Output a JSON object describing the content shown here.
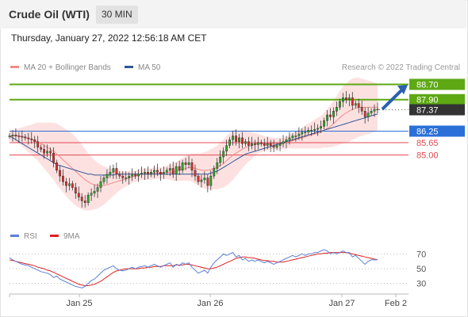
{
  "header": {
    "title": "Crude Oil (WTI)",
    "interval": "30 MIN"
  },
  "datetime": "Thursday, January 27, 2022 12:56:18 AM CET",
  "legend_main": [
    {
      "label": "MA 20 + Bollinger Bands",
      "color": "#f28b8b"
    },
    {
      "label": "MA 50",
      "color": "#2e5597"
    }
  ],
  "legend_rsi": [
    {
      "label": "RSI",
      "color": "#5a7fd6"
    },
    {
      "label": "9MA",
      "color": "#e02020"
    }
  ],
  "copyright": "Research © 2022 Trading Central",
  "chart_data": [
    {
      "type": "candlestick",
      "x_tick_labels": [
        "Jan 25",
        "Jan 26",
        "Jan 27",
        "Feb 2"
      ],
      "levels": [
        {
          "value": 88.7,
          "label": "88.70",
          "kind": "resistance",
          "color": "#5ea814"
        },
        {
          "value": 87.9,
          "label": "87.90",
          "kind": "resistance",
          "color": "#5ea814"
        },
        {
          "value": 87.37,
          "label": "87.37",
          "kind": "last-price",
          "color": "#333333"
        },
        {
          "value": 86.25,
          "label": "86.25",
          "kind": "pivot",
          "color": "#2b6fd8"
        },
        {
          "value": 85.65,
          "label": "85.65",
          "kind": "support",
          "color": "#e3484d"
        },
        {
          "value": 85.0,
          "label": "85.00",
          "kind": "support",
          "color": "#e3484d"
        }
      ],
      "ylim": [
        81.0,
        89.3
      ],
      "series": [
        {
          "name": "MA 20 + Bollinger Bands"
        },
        {
          "name": "MA 50"
        }
      ],
      "close": [
        86.0,
        86.05,
        86.0,
        85.98,
        85.95,
        85.9,
        85.85,
        85.8,
        85.7,
        85.4,
        85.3,
        85.1,
        85.2,
        85.1,
        84.6,
        84.2,
        83.9,
        83.6,
        83.4,
        83.5,
        83.3,
        83.0,
        82.8,
        82.6,
        82.5,
        82.9,
        83.0,
        83.1,
        83.3,
        83.6,
        83.8,
        84.0,
        84.1,
        84.3,
        84.0,
        83.9,
        83.8,
        83.8,
        83.9,
        84.0,
        83.9,
        84.0,
        84.05,
        84.1,
        84.0,
        84.1,
        84.2,
        84.1,
        84.0,
        84.1,
        84.2,
        84.3,
        84.0,
        84.4,
        84.2,
        84.6,
        84.5,
        84.6,
        84.2,
        83.9,
        83.6,
        83.7,
        83.8,
        83.4,
        83.9,
        84.3,
        84.6,
        84.9,
        85.2,
        85.5,
        85.8,
        86.0,
        85.7,
        85.9,
        85.6,
        85.7,
        85.5,
        85.6,
        85.55,
        85.65,
        85.6,
        85.5,
        85.6,
        85.5,
        85.4,
        85.5,
        85.6,
        85.7,
        85.8,
        85.9,
        86.0,
        86.0,
        86.1,
        86.2,
        86.2,
        86.3,
        86.3,
        86.35,
        86.4,
        86.5,
        86.8,
        87.1,
        87.0,
        87.3,
        87.5,
        87.8,
        88.0,
        87.9,
        88.0,
        87.6,
        87.7,
        87.5,
        87.3,
        87.0,
        87.2,
        87.3,
        87.4,
        87.37
      ],
      "ma20": [
        86.0,
        86.0,
        86.0,
        86.0,
        85.95,
        85.9,
        85.85,
        85.8,
        85.75,
        85.7,
        85.6,
        85.5,
        85.4,
        85.3,
        85.2,
        85.05,
        84.9,
        84.75,
        84.6,
        84.45,
        84.3,
        84.15,
        84.0,
        83.85,
        83.7,
        83.6,
        83.5,
        83.45,
        83.4,
        83.4,
        83.4,
        83.45,
        83.5,
        83.55,
        83.6,
        83.65,
        83.7,
        83.75,
        83.8,
        83.85,
        83.9,
        83.95,
        84.0,
        84.0,
        84.0,
        84.0,
        84.05,
        84.05,
        84.05,
        84.05,
        84.1,
        84.1,
        84.1,
        84.15,
        84.2,
        84.25,
        84.3,
        84.35,
        84.35,
        84.3,
        84.25,
        84.2,
        84.2,
        84.2,
        84.25,
        84.3,
        84.35,
        84.45,
        84.55,
        84.7,
        84.85,
        85.0,
        85.1,
        85.2,
        85.3,
        85.4,
        85.45,
        85.5,
        85.55,
        85.6,
        85.6,
        85.6,
        85.6,
        85.6,
        85.6,
        85.6,
        85.6,
        85.6,
        85.65,
        85.7,
        85.75,
        85.8,
        85.85,
        85.9,
        85.95,
        86.0,
        86.05,
        86.1,
        86.15,
        86.2,
        86.3,
        86.4,
        86.5,
        86.65,
        86.8,
        86.95,
        87.1,
        87.2,
        87.3,
        87.4,
        87.45,
        87.5,
        87.5,
        87.5,
        87.5,
        87.5,
        87.5,
        87.5
      ],
      "ma50": [
        86.0,
        85.9,
        85.8,
        85.7,
        85.6,
        85.5,
        85.4,
        85.3,
        85.2,
        85.1,
        85.0,
        84.9,
        84.8,
        84.7,
        84.6,
        84.5,
        84.45,
        84.4,
        84.35,
        84.3,
        84.25,
        84.2,
        84.15,
        84.1,
        84.05,
        84.0,
        84.0,
        83.95,
        83.95,
        83.95,
        83.95,
        83.95,
        83.95,
        83.95,
        84.0,
        84.0,
        84.0,
        84.0,
        84.0,
        84.0,
        84.0,
        84.0,
        84.0,
        84.0,
        84.0,
        84.0,
        84.0,
        84.0,
        84.0,
        84.0,
        84.0,
        84.0,
        84.0,
        84.0,
        84.0,
        84.0,
        84.0,
        84.0,
        84.0,
        84.0,
        84.0,
        84.0,
        84.0,
        84.0,
        84.05,
        84.1,
        84.15,
        84.25,
        84.35,
        84.45,
        84.55,
        84.65,
        84.75,
        84.85,
        84.95,
        85.05,
        85.1,
        85.15,
        85.2,
        85.25,
        85.3,
        85.35,
        85.4,
        85.45,
        85.5,
        85.55,
        85.6,
        85.65,
        85.7,
        85.75,
        85.8,
        85.85,
        85.9,
        85.95,
        86.0,
        86.05,
        86.1,
        86.15,
        86.2,
        86.25,
        86.3,
        86.35,
        86.4,
        86.45,
        86.5,
        86.55,
        86.6,
        86.65,
        86.7,
        86.75,
        86.8,
        86.85,
        86.9,
        86.95,
        87.0,
        87.05,
        87.1,
        87.15
      ],
      "bollinger_width": [
        0.3,
        0.3,
        0.35,
        0.4,
        0.5,
        0.6,
        0.7,
        0.8,
        0.9,
        1.0,
        1.1,
        1.2,
        1.3,
        1.4,
        1.5,
        1.6,
        1.65,
        1.7,
        1.75,
        1.8,
        1.8,
        1.8,
        1.75,
        1.7,
        1.6,
        1.5,
        1.4,
        1.3,
        1.2,
        1.1,
        1.0,
        0.9,
        0.8,
        0.7,
        0.6,
        0.5,
        0.45,
        0.4,
        0.35,
        0.3,
        0.3,
        0.3,
        0.3,
        0.3,
        0.3,
        0.3,
        0.3,
        0.3,
        0.3,
        0.3,
        0.35,
        0.4,
        0.45,
        0.5,
        0.55,
        0.6,
        0.65,
        0.7,
        0.75,
        0.8,
        0.85,
        0.9,
        0.95,
        1.0,
        1.05,
        1.1,
        1.15,
        1.2,
        1.25,
        1.3,
        1.3,
        1.3,
        1.2,
        1.1,
        1.0,
        0.9,
        0.8,
        0.7,
        0.6,
        0.5,
        0.45,
        0.4,
        0.35,
        0.3,
        0.3,
        0.3,
        0.3,
        0.3,
        0.3,
        0.35,
        0.4,
        0.45,
        0.5,
        0.55,
        0.6,
        0.65,
        0.7,
        0.75,
        0.8,
        0.85,
        0.9,
        1.0,
        1.1,
        1.2,
        1.3,
        1.4,
        1.5,
        1.55,
        1.6,
        1.6,
        1.6,
        1.55,
        1.5,
        1.45,
        1.4,
        1.35,
        1.3,
        1.25
      ]
    },
    {
      "type": "line",
      "y_tick_labels": [
        "70",
        "50",
        "30"
      ],
      "y_ticks": [
        70,
        50,
        30
      ],
      "ylim": [
        20,
        78
      ],
      "series": [
        {
          "name": "RSI",
          "values": [
            65,
            62,
            60,
            58,
            56,
            55,
            54,
            52,
            50,
            48,
            46,
            45,
            44,
            42,
            38,
            40,
            36,
            34,
            32,
            30,
            28,
            26,
            25,
            24,
            26,
            30,
            34,
            36,
            40,
            44,
            48,
            50,
            52,
            54,
            50,
            48,
            47,
            48,
            50,
            52,
            50,
            52,
            53,
            54,
            52,
            54,
            56,
            54,
            52,
            54,
            56,
            58,
            52,
            56,
            54,
            58,
            56,
            58,
            52,
            48,
            44,
            46,
            48,
            44,
            52,
            58,
            62,
            66,
            70,
            68,
            70,
            72,
            66,
            68,
            62,
            64,
            60,
            62,
            60,
            62,
            60,
            58,
            60,
            58,
            56,
            58,
            60,
            62,
            64,
            66,
            68,
            66,
            68,
            70,
            68,
            70,
            70,
            72,
            72,
            74,
            76,
            74,
            70,
            72,
            70,
            72,
            74,
            72,
            72,
            66,
            68,
            64,
            60,
            56,
            60,
            62,
            62,
            62
          ]
        },
        {
          "name": "9MA",
          "values": [
            62,
            61,
            60,
            59,
            58,
            57,
            56,
            55,
            54,
            52,
            51,
            50,
            48,
            47,
            45,
            43,
            41,
            39,
            37,
            35,
            33,
            31,
            29,
            28,
            27,
            27,
            28,
            29,
            31,
            33,
            36,
            39,
            42,
            45,
            47,
            48,
            49,
            50,
            50,
            50,
            50,
            50,
            51,
            51,
            52,
            52,
            53,
            53,
            53,
            54,
            54,
            54,
            54,
            55,
            55,
            55,
            56,
            56,
            55,
            54,
            53,
            52,
            51,
            50,
            50,
            51,
            52,
            54,
            56,
            58,
            60,
            62,
            64,
            65,
            66,
            66,
            65,
            65,
            64,
            63,
            62,
            61,
            61,
            60,
            60,
            59,
            59,
            59,
            60,
            61,
            62,
            63,
            64,
            65,
            66,
            67,
            68,
            69,
            70,
            70,
            71,
            71,
            72,
            72,
            72,
            72,
            72,
            72,
            71,
            70,
            69,
            68,
            67,
            66,
            65,
            64,
            63,
            62
          ]
        }
      ]
    }
  ]
}
